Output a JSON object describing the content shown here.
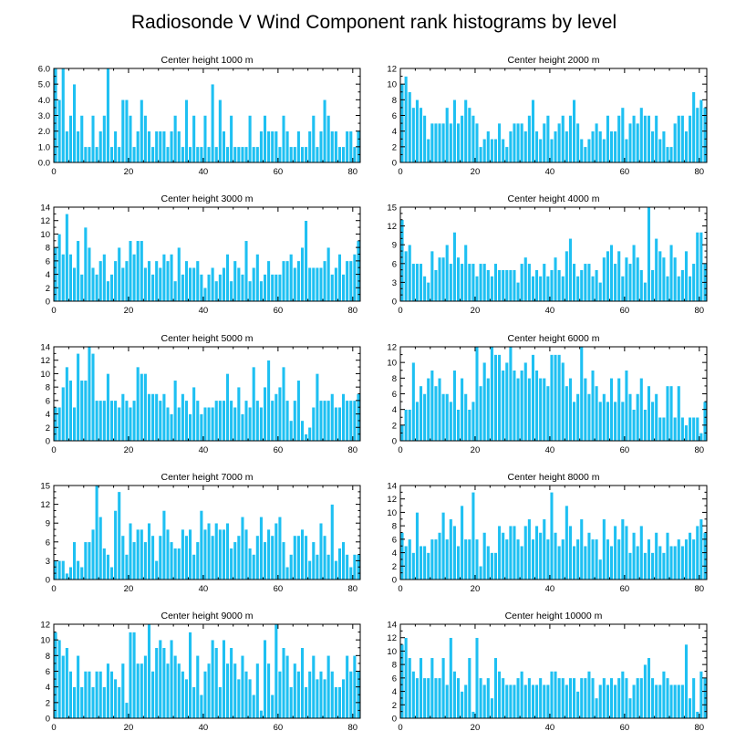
{
  "title": "Radiosonde V Wind Component rank histograms by level",
  "colors": {
    "bar": "#1ec0f2",
    "bar_edge": "#ffffff",
    "axis": "#000000"
  },
  "chart_data": [
    {
      "type": "bar",
      "title": "Center height 1000 m",
      "xlim": [
        0,
        82
      ],
      "xticks": [
        0,
        20,
        40,
        60,
        80
      ],
      "ylim": [
        0,
        6
      ],
      "yticks": [
        0,
        1,
        2,
        3,
        4,
        5,
        6
      ],
      "ytick_labels": [
        "0.0",
        "1.0",
        "2.0",
        "3.0",
        "4.0",
        "5.0",
        "6.0"
      ],
      "values": [
        6,
        4,
        6,
        2,
        3,
        5,
        2,
        3,
        1,
        1,
        3,
        1,
        2,
        3,
        6,
        1,
        2,
        1,
        4,
        4,
        3,
        1,
        2,
        4,
        3,
        2,
        1,
        2,
        2,
        2,
        1,
        2,
        3,
        2,
        1,
        4,
        1,
        3,
        1,
        1,
        3,
        1,
        5,
        1,
        4,
        2,
        1,
        3,
        1,
        1,
        1,
        1,
        3,
        1,
        1,
        2,
        3,
        2,
        2,
        2,
        1,
        3,
        2,
        1,
        1,
        2,
        1,
        1,
        2,
        3,
        1,
        2,
        4,
        3,
        2,
        2,
        1,
        1,
        2,
        2,
        1,
        2
      ]
    },
    {
      "type": "bar",
      "title": "Center height 2000 m",
      "xlim": [
        0,
        82
      ],
      "xticks": [
        0,
        20,
        40,
        60,
        80
      ],
      "ylim": [
        0,
        12
      ],
      "yticks": [
        0,
        2,
        4,
        6,
        8,
        10,
        12
      ],
      "ytick_labels": [
        "0",
        "2",
        "4",
        "6",
        "8",
        "10",
        "12"
      ],
      "values": [
        10,
        11,
        9,
        7,
        8,
        7,
        6,
        3,
        5,
        5,
        5,
        5,
        7,
        5,
        8,
        5,
        6,
        8,
        7,
        6,
        5,
        2,
        3,
        4,
        3,
        3,
        5,
        3,
        2,
        4,
        5,
        5,
        5,
        4,
        6,
        8,
        4,
        3,
        5,
        6,
        3,
        4,
        5,
        6,
        4,
        6,
        8,
        5,
        3,
        2,
        3,
        4,
        5,
        4,
        3,
        6,
        4,
        4,
        6,
        7,
        3,
        5,
        6,
        5,
        7,
        6,
        6,
        4,
        6,
        3,
        4,
        2,
        2,
        5,
        6,
        6,
        4,
        6,
        9,
        7,
        8,
        7
      ]
    },
    {
      "type": "bar",
      "title": "Center height 3000 m",
      "xlim": [
        0,
        82
      ],
      "xticks": [
        0,
        20,
        40,
        60,
        80
      ],
      "ylim": [
        0,
        14
      ],
      "yticks": [
        0,
        2,
        4,
        6,
        8,
        10,
        12,
        14
      ],
      "ytick_labels": [
        "0",
        "2",
        "4",
        "6",
        "8",
        "10",
        "12",
        "14"
      ],
      "values": [
        8,
        10,
        7,
        13,
        7,
        5,
        9,
        4,
        11,
        8,
        5,
        4,
        6,
        7,
        3,
        4,
        6,
        8,
        5,
        6,
        9,
        7,
        9,
        9,
        5,
        6,
        4,
        6,
        5,
        7,
        6,
        7,
        3,
        8,
        4,
        6,
        5,
        5,
        6,
        4,
        2,
        4,
        5,
        3,
        4,
        5,
        7,
        3,
        6,
        5,
        4,
        9,
        3,
        5,
        7,
        3,
        4,
        6,
        4,
        4,
        4,
        6,
        6,
        7,
        5,
        6,
        8,
        12,
        5,
        5,
        5,
        5,
        6,
        8,
        4,
        5,
        7,
        4,
        6,
        6,
        7,
        9
      ]
    },
    {
      "type": "bar",
      "title": "Center height 4000 m",
      "xlim": [
        0,
        82
      ],
      "xticks": [
        0,
        20,
        40,
        60,
        80
      ],
      "ylim": [
        0,
        15
      ],
      "yticks": [
        0,
        3,
        6,
        9,
        12,
        15
      ],
      "ytick_labels": [
        "0",
        "3",
        "6",
        "9",
        "12",
        "15"
      ],
      "values": [
        13,
        8,
        9,
        6,
        6,
        6,
        4,
        3,
        8,
        5,
        7,
        7,
        9,
        6,
        11,
        7,
        6,
        9,
        6,
        6,
        4,
        6,
        6,
        5,
        4,
        6,
        5,
        5,
        5,
        5,
        5,
        3,
        6,
        7,
        6,
        4,
        5,
        4,
        6,
        4,
        5,
        7,
        5,
        4,
        8,
        10,
        6,
        4,
        5,
        6,
        6,
        4,
        5,
        3,
        7,
        8,
        9,
        6,
        8,
        4,
        7,
        6,
        9,
        7,
        5,
        3,
        15,
        5,
        10,
        8,
        7,
        4,
        9,
        7,
        4,
        5,
        8,
        4,
        6,
        11,
        11,
        6
      ]
    },
    {
      "type": "bar",
      "title": "Center height 5000 m",
      "xlim": [
        0,
        82
      ],
      "xticks": [
        0,
        20,
        40,
        60,
        80
      ],
      "ylim": [
        0,
        14
      ],
      "yticks": [
        0,
        2,
        4,
        6,
        8,
        10,
        12,
        14
      ],
      "ytick_labels": [
        "0",
        "2",
        "4",
        "6",
        "8",
        "10",
        "12",
        "14"
      ],
      "values": [
        5,
        5,
        8,
        11,
        9,
        5,
        13,
        9,
        9,
        14,
        13,
        6,
        6,
        6,
        10,
        6,
        6,
        5,
        7,
        6,
        5,
        6,
        11,
        10,
        10,
        7,
        7,
        7,
        6,
        7,
        5,
        4,
        9,
        5,
        7,
        6,
        4,
        8,
        6,
        4,
        5,
        5,
        5,
        6,
        6,
        6,
        10,
        6,
        5,
        8,
        4,
        6,
        5,
        11,
        6,
        5,
        8,
        12,
        6,
        7,
        8,
        11,
        6,
        3,
        6,
        9,
        3,
        1,
        2,
        5,
        10,
        6,
        6,
        6,
        7,
        5,
        5,
        7,
        6,
        6,
        6,
        7
      ]
    },
    {
      "type": "bar",
      "title": "Center height 6000 m",
      "xlim": [
        0,
        82
      ],
      "xticks": [
        0,
        20,
        40,
        60,
        80
      ],
      "ylim": [
        0,
        12
      ],
      "yticks": [
        0,
        2,
        4,
        6,
        8,
        10,
        12
      ],
      "ytick_labels": [
        "0",
        "2",
        "4",
        "6",
        "8",
        "10",
        "12"
      ],
      "values": [
        2,
        4,
        4,
        10,
        5,
        7,
        6,
        8,
        9,
        7,
        8,
        6,
        6,
        5,
        9,
        4,
        8,
        6,
        4,
        5,
        12,
        7,
        10,
        8,
        12,
        11,
        11,
        9,
        10,
        12,
        9,
        8,
        9,
        10,
        8,
        11,
        9,
        8,
        8,
        7,
        11,
        11,
        11,
        10,
        7,
        8,
        5,
        6,
        12,
        8,
        6,
        9,
        7,
        5,
        6,
        5,
        8,
        5,
        8,
        5,
        9,
        6,
        4,
        6,
        8,
        4,
        7,
        5,
        6,
        3,
        3,
        7,
        7,
        3,
        7,
        3,
        2,
        3,
        3,
        3,
        1,
        5
      ]
    },
    {
      "type": "bar",
      "title": "Center height 7000 m",
      "xlim": [
        0,
        82
      ],
      "xticks": [
        0,
        20,
        40,
        60,
        80
      ],
      "ylim": [
        0,
        15
      ],
      "yticks": [
        0,
        3,
        6,
        9,
        12,
        15
      ],
      "ytick_labels": [
        "0",
        "3",
        "6",
        "9",
        "12",
        "15"
      ],
      "values": [
        3,
        3,
        3,
        1,
        2,
        6,
        3,
        2,
        6,
        6,
        8,
        15,
        10,
        5,
        4,
        2,
        11,
        14,
        7,
        4,
        9,
        6,
        8,
        8,
        6,
        9,
        7,
        3,
        7,
        11,
        8,
        6,
        5,
        5,
        8,
        7,
        8,
        4,
        6,
        11,
        8,
        9,
        7,
        9,
        8,
        8,
        9,
        5,
        6,
        7,
        10,
        8,
        5,
        4,
        7,
        10,
        6,
        8,
        7,
        9,
        10,
        6,
        2,
        4,
        7,
        7,
        8,
        7,
        3,
        6,
        4,
        9,
        7,
        4,
        12,
        3,
        5,
        6,
        4,
        2,
        4,
        4
      ]
    },
    {
      "type": "bar",
      "title": "Center height 8000 m",
      "xlim": [
        0,
        82
      ],
      "xticks": [
        0,
        20,
        40,
        60,
        80
      ],
      "ylim": [
        0,
        14
      ],
      "yticks": [
        0,
        2,
        4,
        6,
        8,
        10,
        12,
        14
      ],
      "ytick_labels": [
        "0",
        "2",
        "4",
        "6",
        "8",
        "10",
        "12",
        "14"
      ],
      "values": [
        7,
        5,
        6,
        4,
        10,
        5,
        5,
        4,
        6,
        6,
        7,
        10,
        6,
        9,
        8,
        5,
        11,
        6,
        6,
        13,
        6,
        2,
        7,
        5,
        4,
        4,
        8,
        7,
        6,
        8,
        8,
        6,
        5,
        8,
        9,
        6,
        8,
        7,
        9,
        6,
        13,
        7,
        5,
        6,
        11,
        8,
        5,
        6,
        9,
        5,
        7,
        6,
        6,
        3,
        9,
        6,
        5,
        8,
        6,
        9,
        8,
        4,
        7,
        5,
        8,
        4,
        6,
        4,
        7,
        5,
        4,
        7,
        5,
        5,
        6,
        5,
        6,
        7,
        6,
        8,
        9,
        7
      ]
    },
    {
      "type": "bar",
      "title": "Center height 9000 m",
      "xlim": [
        0,
        82
      ],
      "xticks": [
        0,
        20,
        40,
        60,
        80
      ],
      "ylim": [
        0,
        12
      ],
      "yticks": [
        0,
        2,
        4,
        6,
        8,
        10,
        12
      ],
      "ytick_labels": [
        "0",
        "2",
        "4",
        "6",
        "8",
        "10",
        "12"
      ],
      "values": [
        11,
        10,
        8,
        9,
        6,
        4,
        8,
        4,
        6,
        6,
        4,
        6,
        6,
        4,
        7,
        6,
        5,
        4,
        7,
        2,
        11,
        11,
        7,
        7,
        8,
        12,
        6,
        9,
        10,
        9,
        7,
        10,
        8,
        7,
        6,
        5,
        11,
        4,
        8,
        3,
        6,
        7,
        10,
        9,
        4,
        10,
        7,
        9,
        7,
        5,
        8,
        6,
        5,
        3,
        7,
        1,
        10,
        7,
        3,
        12,
        6,
        9,
        8,
        4,
        7,
        6,
        9,
        4,
        6,
        8,
        5,
        6,
        5,
        8,
        6,
        4,
        4,
        5,
        8,
        6,
        8,
        6
      ]
    },
    {
      "type": "bar",
      "title": "Center height 10000 m",
      "xlim": [
        0,
        82
      ],
      "xticks": [
        0,
        20,
        40,
        60,
        80
      ],
      "ylim": [
        0,
        14
      ],
      "yticks": [
        0,
        2,
        4,
        6,
        8,
        10,
        12,
        14
      ],
      "ytick_labels": [
        "0",
        "2",
        "4",
        "6",
        "8",
        "10",
        "12",
        "14"
      ],
      "values": [
        11,
        12,
        9,
        7,
        6,
        9,
        6,
        6,
        9,
        6,
        6,
        9,
        5,
        12,
        7,
        6,
        4,
        5,
        9,
        1,
        12,
        6,
        5,
        6,
        3,
        9,
        7,
        6,
        5,
        5,
        5,
        6,
        7,
        5,
        6,
        5,
        5,
        6,
        5,
        5,
        7,
        7,
        6,
        6,
        5,
        6,
        6,
        4,
        6,
        6,
        7,
        6,
        3,
        5,
        6,
        5,
        6,
        5,
        6,
        7,
        6,
        3,
        5,
        6,
        6,
        8,
        9,
        6,
        5,
        5,
        7,
        6,
        5,
        5,
        5,
        5,
        11,
        3,
        6,
        1,
        7,
        6
      ]
    }
  ]
}
